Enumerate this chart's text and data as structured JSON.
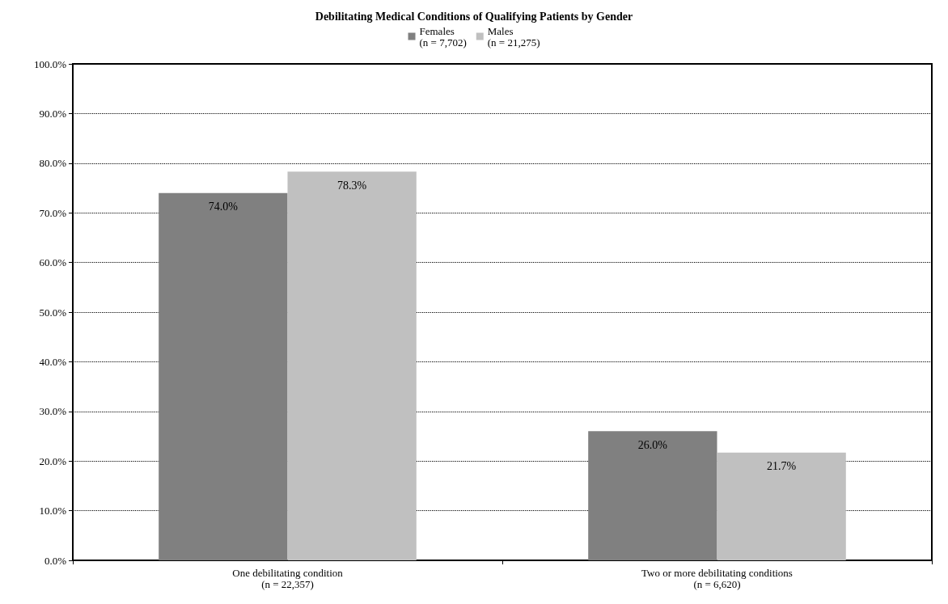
{
  "chart_data": {
    "type": "bar",
    "title": "Debilitating Medical Conditions of Qualifying Patients by Gender",
    "categories": [
      "One debilitating condition\n(n = 22,357)",
      "Two or more debilitating conditions\n(n = 6,620)"
    ],
    "series": [
      {
        "name": "Females\n(n = 7,702)",
        "color": "#808080",
        "values": [
          74.0,
          26.0
        ],
        "value_labels": [
          "74.0%",
          "26.0%"
        ]
      },
      {
        "name": "Males\n(n = 21,275)",
        "color": "#c0c0c0",
        "values": [
          78.3,
          21.7
        ],
        "value_labels": [
          "78.3%",
          "21.7%"
        ]
      }
    ],
    "ylim": [
      0,
      100
    ],
    "yticks": [
      {
        "value": 0,
        "label": "0.0%"
      },
      {
        "value": 10,
        "label": "10.0%"
      },
      {
        "value": 20,
        "label": "20.0%"
      },
      {
        "value": 30,
        "label": "30.0%"
      },
      {
        "value": 40,
        "label": "40.0%"
      },
      {
        "value": 50,
        "label": "50.0%"
      },
      {
        "value": 60,
        "label": "60.0%"
      },
      {
        "value": 70,
        "label": "70.0%"
      },
      {
        "value": 80,
        "label": "80.0%"
      },
      {
        "value": 90,
        "label": "90.0%"
      },
      {
        "value": 100,
        "label": "100.0%"
      }
    ],
    "grid": "y",
    "legend": "top"
  }
}
